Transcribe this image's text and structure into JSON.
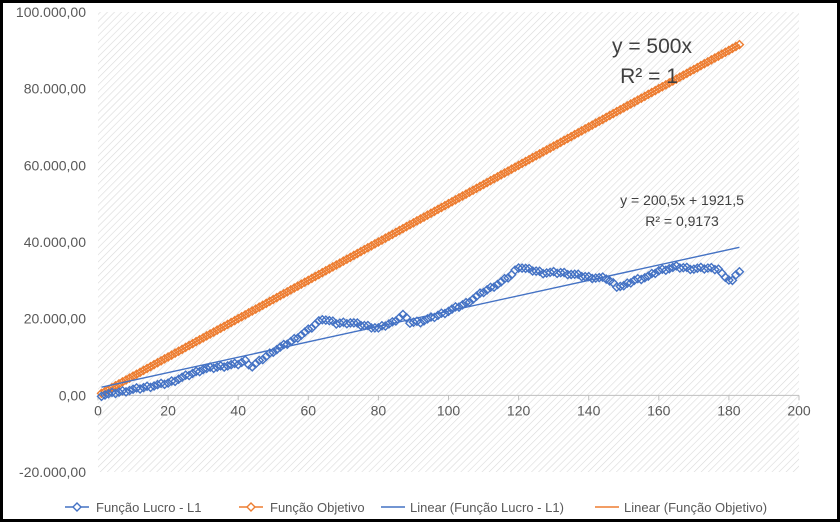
{
  "chart_data": {
    "type": "line",
    "title": "",
    "xlabel": "",
    "ylabel": "",
    "xlim": [
      0,
      200
    ],
    "ylim": [
      -20000,
      100000
    ],
    "x_ticks": [
      0,
      20,
      40,
      60,
      80,
      100,
      120,
      140,
      160,
      180,
      200
    ],
    "x_tick_labels": [
      "0",
      "20",
      "40",
      "60",
      "80",
      "100",
      "120",
      "140",
      "160",
      "180",
      "200"
    ],
    "y_ticks": [
      -20000,
      0,
      20000,
      40000,
      60000,
      80000,
      100000
    ],
    "y_tick_labels": [
      "-20.000,00",
      "0,00",
      "20.000,00",
      "40.000,00",
      "60.000,00",
      "80.000,00",
      "100.000,00"
    ],
    "grid": "diagonal-hatch",
    "legend_position": "bottom",
    "colors": {
      "lucro": "#4472C4",
      "objetivo": "#ED7D31",
      "axis": "#BFBFBF",
      "hatch": "#D9D9D9"
    },
    "series": [
      {
        "name": "Função Lucro - L1",
        "kind": "markers",
        "marker": "diamond-open",
        "color": "#4472C4",
        "x_start": 1,
        "x_step": 1,
        "control_points": [
          [
            1,
            0
          ],
          [
            10,
            1500
          ],
          [
            20,
            3200
          ],
          [
            25,
            5000
          ],
          [
            30,
            6800
          ],
          [
            35,
            7500
          ],
          [
            40,
            8200
          ],
          [
            42,
            9000
          ],
          [
            44,
            7500
          ],
          [
            47,
            9500
          ],
          [
            50,
            11500
          ],
          [
            55,
            14000
          ],
          [
            60,
            17000
          ],
          [
            64,
            20000
          ],
          [
            68,
            18800
          ],
          [
            72,
            19000
          ],
          [
            76,
            18200
          ],
          [
            80,
            17500
          ],
          [
            84,
            19000
          ],
          [
            87,
            21000
          ],
          [
            89,
            19000
          ],
          [
            92,
            19200
          ],
          [
            96,
            20500
          ],
          [
            100,
            22000
          ],
          [
            105,
            24000
          ],
          [
            110,
            27000
          ],
          [
            115,
            29500
          ],
          [
            118,
            31500
          ],
          [
            120,
            33500
          ],
          [
            123,
            32800
          ],
          [
            127,
            32000
          ],
          [
            132,
            32000
          ],
          [
            136,
            31500
          ],
          [
            140,
            30800
          ],
          [
            145,
            30500
          ],
          [
            148,
            28500
          ],
          [
            150,
            28500
          ],
          [
            153,
            30000
          ],
          [
            157,
            31000
          ],
          [
            160,
            32500
          ],
          [
            165,
            33500
          ],
          [
            170,
            33000
          ],
          [
            174,
            33200
          ],
          [
            177,
            33000
          ],
          [
            179,
            30500
          ],
          [
            181,
            30000
          ],
          [
            183,
            32500
          ]
        ],
        "count": 183
      },
      {
        "name": "Função Objetivo",
        "kind": "markers",
        "marker": "diamond-open",
        "color": "#ED7D31",
        "formula": "y = 500x",
        "x_start": 1,
        "x_end": 183,
        "x_step": 1
      },
      {
        "name": "Linear (Função Lucro - L1)",
        "kind": "trendline",
        "color": "#4472C4",
        "slope": 200.5,
        "intercept": 1921.5,
        "x_range": [
          1,
          183
        ]
      },
      {
        "name": "Linear (Função Objetivo)",
        "kind": "trendline",
        "color": "#ED7D31",
        "slope": 500,
        "intercept": 0,
        "x_range": [
          1,
          183
        ]
      }
    ],
    "annotations": {
      "objetivo_eq": "y = 500x",
      "objetivo_r2": "R² = 1",
      "lucro_eq": "y = 200,5x + 1921,5",
      "lucro_r2": "R² = 0,9173"
    }
  }
}
